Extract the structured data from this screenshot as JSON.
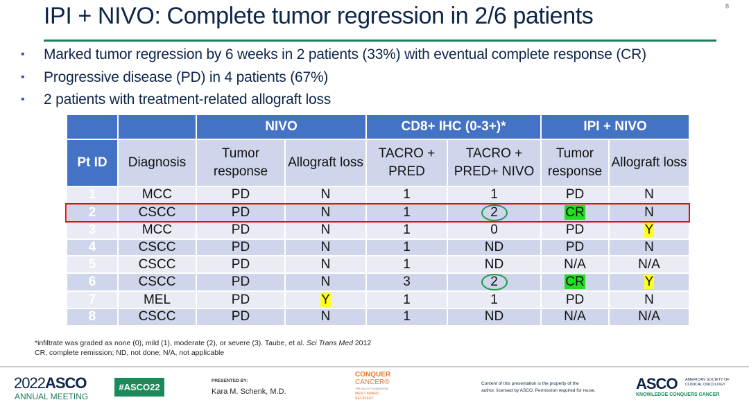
{
  "page_number": "8",
  "title": "IPI + NIVO: Complete tumor regression in 2/6 patients",
  "bullets": [
    "Marked tumor regression by 6 weeks in 2 patients (33%) with eventual complete response (CR)",
    "Progressive disease (PD) in 4 patients (67%)",
    "2 patients with treatment-related allograft loss"
  ],
  "table": {
    "group_headers": [
      "",
      "",
      "NIVO",
      "CD8+ IHC (0-3+)*",
      "IPI + NIVO"
    ],
    "columns": [
      "Pt ID",
      "Diagnosis",
      "Tumor response",
      "Allograft loss",
      "TACRO + PRED",
      "TACRO + PRED+ NIVO",
      "Tumor response",
      "Allograft loss"
    ],
    "rows": [
      [
        "1",
        "MCC",
        "PD",
        "N",
        "1",
        "1",
        "PD",
        "N"
      ],
      [
        "2",
        "CSCC",
        "PD",
        "N",
        "1",
        "2",
        "CR",
        "N"
      ],
      [
        "3",
        "MCC",
        "PD",
        "N",
        "1",
        "0",
        "PD",
        "Y"
      ],
      [
        "4",
        "CSCC",
        "PD",
        "N",
        "1",
        "ND",
        "PD",
        "N"
      ],
      [
        "5",
        "CSCC",
        "PD",
        "N",
        "1",
        "ND",
        "N/A",
        "N/A"
      ],
      [
        "6",
        "CSCC",
        "PD",
        "N",
        "3",
        "2",
        "CR",
        "Y"
      ],
      [
        "7",
        "MEL",
        "PD",
        "Y",
        "1",
        "1",
        "PD",
        "N"
      ],
      [
        "8",
        "CSCC",
        "PD",
        "N",
        "1",
        "ND",
        "N/A",
        "N/A"
      ]
    ],
    "highlights": {
      "1-5": "circle",
      "1-6": "green",
      "2-7": "yellow",
      "5-5": "circle",
      "5-6": "green",
      "5-7": "yellow",
      "6-3": "yellow"
    },
    "highlighted_row": "2",
    "colors": {
      "header": "#4472c4",
      "row_dark": "#cfd5ea",
      "row_light": "#e9ebf5",
      "green": "#22dd22",
      "yellow": "#ffff22",
      "circle": "#1b9a4a",
      "box": "#e01010"
    }
  },
  "footnotes": {
    "line1_prefix": "*infiltrate was graded as none (0), mild (1), moderate (2), or severe (3). Taube, et al. ",
    "line1_journal": "Sci Trans Med",
    "line1_year": " 2012",
    "line2": "CR, complete remission; ND, not done; N/A, not applicable"
  },
  "footer": {
    "meeting_year": "2022",
    "meeting_brand": "ASCO",
    "meeting_sub": "ANNUAL MEETING",
    "hashtag": "#ASCO22",
    "presented_by_label": "PRESENTED BY:",
    "presenter": "Kara M. Schenk, M.D.",
    "cc_line1": "CONQUER",
    "cc_line2": "CANCER®",
    "cc_line3": "THE ASCO FOUNDATION",
    "cc_line4": "MERIT AWARD",
    "cc_line5": "RECIPIENT",
    "copyright_line1": "Content of this presentation is the property of the",
    "copyright_line2": "author, licensed by ASCO. Permission required for reuse.",
    "asco_logo": "ASCO",
    "asco_sub1": "AMERICAN SOCIETY OF",
    "asco_sub2": "CLINICAL ONCOLOGY",
    "asco_tagline": "KNOWLEDGE CONQUERS CANCER"
  }
}
